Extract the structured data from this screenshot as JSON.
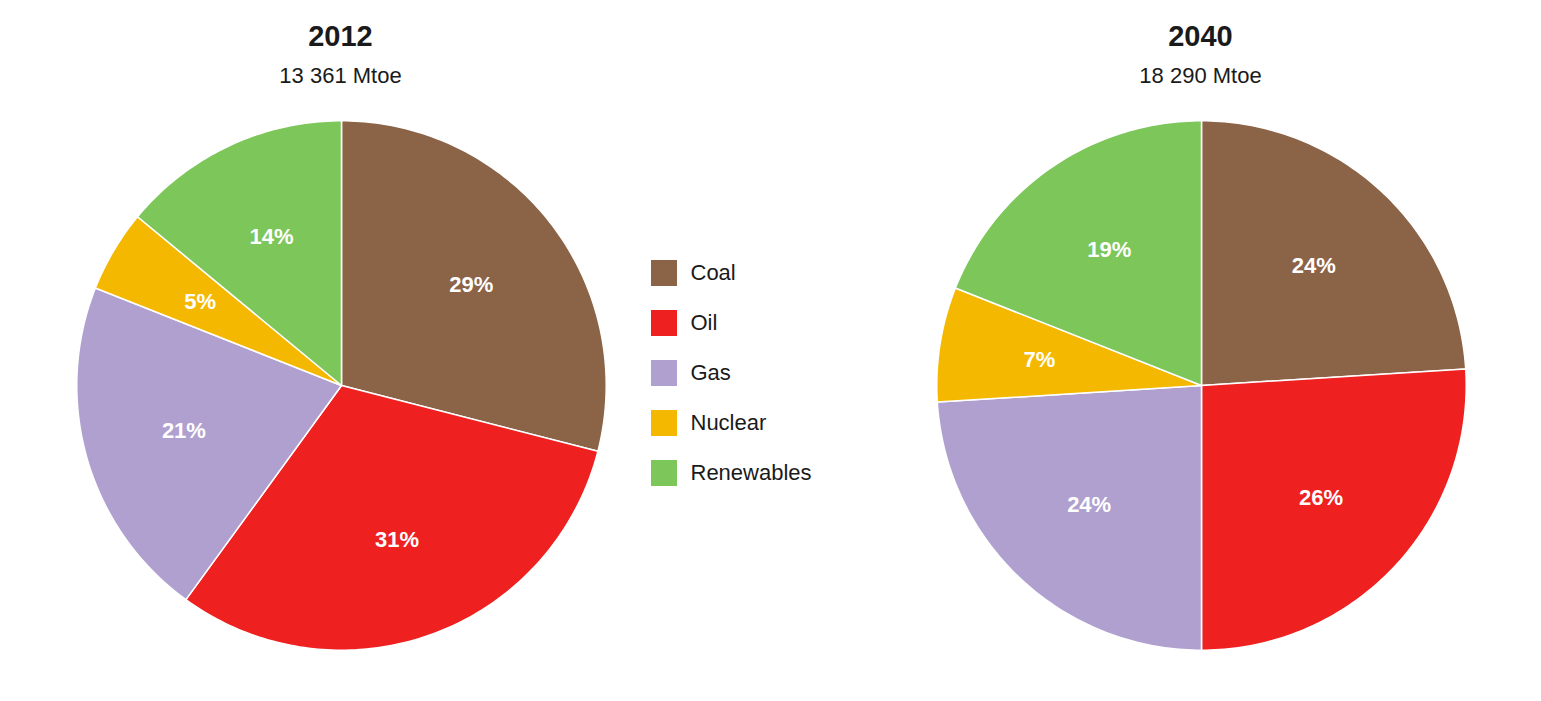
{
  "chart_data": [
    {
      "type": "pie",
      "title": "2012",
      "subtitle": "13 361 Mtoe",
      "categories": [
        "Coal",
        "Oil",
        "Gas",
        "Nuclear",
        "Renewables"
      ],
      "values": [
        29,
        31,
        21,
        5,
        14
      ],
      "value_labels": [
        "29%",
        "31%",
        "21%",
        "5%",
        "14%"
      ],
      "colors": [
        "#8B6347",
        "#EE2020",
        "#B0A0D0",
        "#F5B800",
        "#7DC65A"
      ],
      "data_labels": true,
      "legend": "right"
    },
    {
      "type": "pie",
      "title": "2040",
      "subtitle": "18 290 Mtoe",
      "categories": [
        "Coal",
        "Oil",
        "Gas",
        "Nuclear",
        "Renewables"
      ],
      "values": [
        24,
        26,
        24,
        7,
        19
      ],
      "value_labels": [
        "24%",
        "26%",
        "24%",
        "7%",
        "19%"
      ],
      "colors": [
        "#8B6347",
        "#EE2020",
        "#B0A0D0",
        "#F5B800",
        "#7DC65A"
      ],
      "data_labels": true
    }
  ]
}
